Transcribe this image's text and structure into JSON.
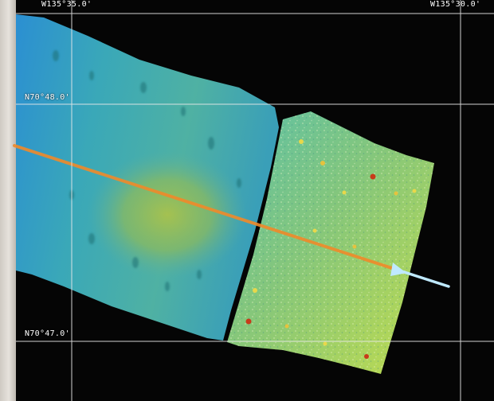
{
  "map": {
    "longitude_labels": {
      "west": "W135°35.0'",
      "east": "W135°30.0'"
    },
    "latitude_labels": {
      "north": "N70°48.0'",
      "south": "N70°47.0'"
    },
    "colors": {
      "background": "#050505",
      "grid": "#e8e8e8",
      "deep_blue": "#2a8fd0",
      "teal": "#3aa9b0",
      "green": "#7fc060",
      "yellow_green": "#b9d84a",
      "track_orange": "#f08a2a",
      "track_cyan": "#bfe9ff",
      "mound_red": "#c83a1a"
    }
  }
}
